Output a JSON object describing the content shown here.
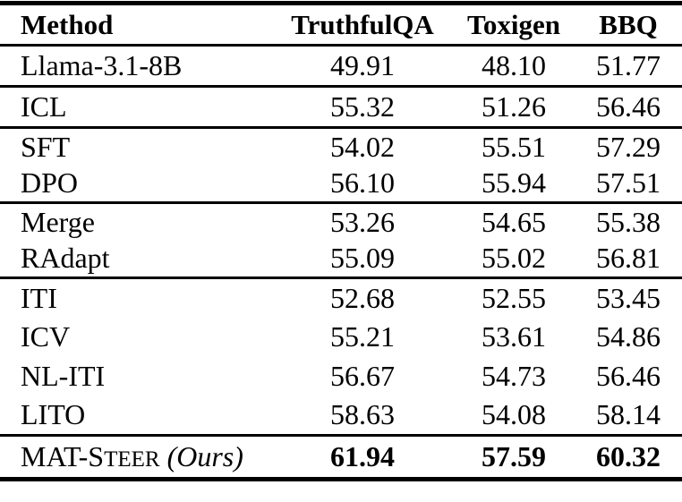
{
  "page": {
    "background_color": "#ffffff",
    "text_color": "#000000",
    "rule_color": "#000000"
  },
  "table": {
    "columns": [
      {
        "label": "Method",
        "align": "left"
      },
      {
        "label": "TruthfulQA",
        "align": "center"
      },
      {
        "label": "Toxigen",
        "align": "center"
      },
      {
        "label": "BBQ",
        "align": "center"
      }
    ],
    "groups": [
      {
        "rows": [
          {
            "method": "Llama-3.1-8B",
            "values": [
              "49.91",
              "48.10",
              "51.77"
            ],
            "bold": false
          }
        ]
      },
      {
        "rows": [
          {
            "method": "ICL",
            "values": [
              "55.32",
              "51.26",
              "56.46"
            ],
            "bold": false
          }
        ]
      },
      {
        "rows": [
          {
            "method": "SFT",
            "values": [
              "54.02",
              "55.51",
              "57.29"
            ],
            "bold": false
          },
          {
            "method": "DPO",
            "values": [
              "56.10",
              "55.94",
              "57.51"
            ],
            "bold": false
          }
        ]
      },
      {
        "rows": [
          {
            "method": "Merge",
            "values": [
              "53.26",
              "54.65",
              "55.38"
            ],
            "bold": false
          },
          {
            "method": "RAdapt",
            "values": [
              "55.09",
              "55.02",
              "56.81"
            ],
            "bold": false
          }
        ]
      },
      {
        "rows": [
          {
            "method": "ITI",
            "values": [
              "52.68",
              "52.55",
              "53.45"
            ],
            "bold": false
          },
          {
            "method": "ICV",
            "values": [
              "55.21",
              "53.61",
              "54.86"
            ],
            "bold": false
          },
          {
            "method": "NL-ITI",
            "values": [
              "56.67",
              "54.73",
              "56.46"
            ],
            "bold": false
          },
          {
            "method": "LITO",
            "values": [
              "58.63",
              "54.08",
              "58.14"
            ],
            "bold": false
          }
        ]
      },
      {
        "ours": true,
        "rows": [
          {
            "method": "MAT-Steer (Ours)",
            "method_parts": [
              {
                "text": "MAT-S",
                "style": "caps"
              },
              {
                "text": "TEER",
                "style": "smallcaps"
              },
              {
                "text": " (Ours)",
                "style": "italic"
              }
            ],
            "values": [
              "61.94",
              "57.59",
              "60.32"
            ],
            "bold": true
          }
        ]
      }
    ]
  }
}
